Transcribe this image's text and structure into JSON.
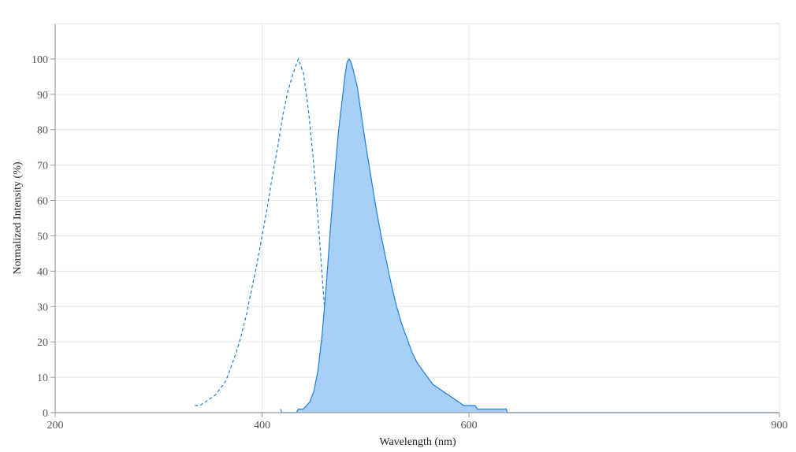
{
  "chart_data": {
    "type": "area",
    "title": "",
    "xlabel": "Wavelength (nm)",
    "ylabel": "Normalized Intensity (%)",
    "xlim": [
      200,
      900
    ],
    "ylim": [
      0,
      110
    ],
    "x_ticks": [
      200,
      400,
      600,
      900
    ],
    "y_ticks": [
      0,
      10,
      20,
      30,
      40,
      50,
      60,
      70,
      80,
      90,
      100
    ],
    "grid": true,
    "legend": "none",
    "colors": {
      "line": "#1f7fe0",
      "fill": "#a8cff8",
      "grid": "#e6e6e6",
      "axis": "#999999"
    },
    "series": [
      {
        "style": "dashed",
        "filled": false,
        "points": [
          [
            335,
            2
          ],
          [
            340,
            2
          ],
          [
            345,
            3
          ],
          [
            350,
            4
          ],
          [
            355,
            5
          ],
          [
            360,
            7
          ],
          [
            365,
            9
          ],
          [
            370,
            13
          ],
          [
            375,
            17
          ],
          [
            380,
            22
          ],
          [
            385,
            28
          ],
          [
            390,
            35
          ],
          [
            395,
            42
          ],
          [
            400,
            50
          ],
          [
            405,
            58
          ],
          [
            410,
            67
          ],
          [
            415,
            75
          ],
          [
            420,
            84
          ],
          [
            425,
            91
          ],
          [
            430,
            96
          ],
          [
            435,
            100
          ],
          [
            440,
            96
          ],
          [
            445,
            85
          ],
          [
            450,
            70
          ],
          [
            455,
            51
          ],
          [
            460,
            31
          ],
          [
            465,
            17
          ],
          [
            470,
            9
          ],
          [
            475,
            4
          ],
          [
            480,
            2
          ],
          [
            485,
            1
          ],
          [
            490,
            0
          ]
        ]
      },
      {
        "style": "solid",
        "filled": true,
        "points": [
          [
            418,
            1
          ],
          [
            419,
            0
          ],
          [
            433,
            0
          ],
          [
            435,
            1
          ],
          [
            440,
            1
          ],
          [
            443,
            2
          ],
          [
            446,
            3
          ],
          [
            450,
            6
          ],
          [
            454,
            12
          ],
          [
            458,
            22
          ],
          [
            462,
            36
          ],
          [
            466,
            52
          ],
          [
            470,
            67
          ],
          [
            474,
            80
          ],
          [
            478,
            90
          ],
          [
            480,
            95
          ],
          [
            482,
            99
          ],
          [
            484,
            100
          ],
          [
            486,
            99
          ],
          [
            488,
            97
          ],
          [
            492,
            92
          ],
          [
            496,
            84
          ],
          [
            500,
            76
          ],
          [
            505,
            67
          ],
          [
            510,
            58
          ],
          [
            515,
            50
          ],
          [
            520,
            43
          ],
          [
            525,
            36
          ],
          [
            530,
            30
          ],
          [
            535,
            25
          ],
          [
            540,
            21
          ],
          [
            545,
            17
          ],
          [
            550,
            14
          ],
          [
            555,
            12
          ],
          [
            560,
            10
          ],
          [
            565,
            8
          ],
          [
            570,
            7
          ],
          [
            575,
            6
          ],
          [
            580,
            5
          ],
          [
            585,
            4
          ],
          [
            590,
            3
          ],
          [
            595,
            2
          ],
          [
            600,
            2
          ],
          [
            606,
            2
          ],
          [
            608,
            1
          ],
          [
            636,
            1
          ],
          [
            637,
            0
          ],
          [
            900,
            0
          ]
        ]
      }
    ]
  }
}
